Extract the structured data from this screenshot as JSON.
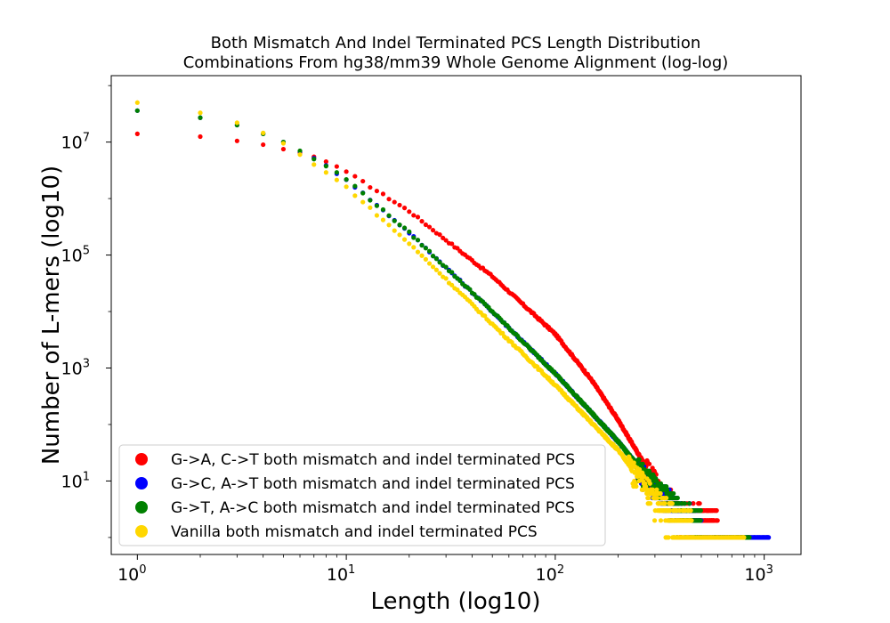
{
  "chart_data": {
    "type": "scatter",
    "title": "Both Mismatch And Indel Terminated PCS Length Distribution",
    "subtitle": "Combinations From hg38/mm39 Whole Genome Alignment (log-log)",
    "xlabel": "Length (log10)",
    "ylabel": "Number of L-mers (log10)",
    "xscale": "log",
    "yscale": "log",
    "xlim": [
      0.75,
      1500
    ],
    "ylim": [
      0.5,
      150000000
    ],
    "x_ticks": [
      {
        "base": "10",
        "exp": "0",
        "value": 1
      },
      {
        "base": "10",
        "exp": "1",
        "value": 10
      },
      {
        "base": "10",
        "exp": "2",
        "value": 100
      },
      {
        "base": "10",
        "exp": "3",
        "value": 1000
      }
    ],
    "y_ticks": [
      {
        "base": "10",
        "exp": "1",
        "value": 10
      },
      {
        "base": "10",
        "exp": "3",
        "value": 1000
      },
      {
        "base": "10",
        "exp": "5",
        "value": 100000
      },
      {
        "base": "10",
        "exp": "7",
        "value": 10000000
      }
    ],
    "legend_position": "lower-left",
    "series": [
      {
        "name": "G->A, C->T both mismatch and indel terminated PCS",
        "color": "#ff0000",
        "anchors": [
          [
            1,
            14000000
          ],
          [
            2,
            12500000
          ],
          [
            3,
            10500000
          ],
          [
            4,
            9000000
          ],
          [
            5,
            7500000
          ],
          [
            8,
            4500000
          ],
          [
            10,
            3000000
          ],
          [
            20,
            600000
          ],
          [
            50,
            42000
          ],
          [
            100,
            4000
          ],
          [
            150,
            600
          ],
          [
            200,
            120
          ],
          [
            250,
            30
          ],
          [
            320,
            7
          ],
          [
            400,
            3
          ],
          [
            600,
            2
          ]
        ],
        "points": [
          [
            1,
            14000000
          ],
          [
            2,
            12500000
          ],
          [
            3,
            10500000
          ],
          [
            4,
            9000000
          ],
          [
            5,
            7500000
          ],
          [
            6,
            6500000
          ],
          [
            7,
            5500000
          ],
          [
            8,
            4500000
          ],
          [
            9,
            3700000
          ],
          [
            10,
            3000000
          ]
        ],
        "max_length": 600,
        "singleton_max": 780
      },
      {
        "name": "G->C, A->T both mismatch and indel terminated PCS",
        "color": "#0000ff",
        "anchors": [
          [
            1,
            36000000
          ],
          [
            2,
            27000000
          ],
          [
            3,
            20000000
          ],
          [
            4,
            14000000
          ],
          [
            5,
            10000000
          ],
          [
            6,
            7000000
          ],
          [
            8,
            3800000
          ],
          [
            10,
            2200000
          ],
          [
            20,
            250000
          ],
          [
            50,
            10000
          ],
          [
            100,
            800
          ],
          [
            200,
            50
          ],
          [
            300,
            8
          ],
          [
            400,
            3
          ],
          [
            500,
            2
          ]
        ],
        "points": [
          [
            1,
            36000000
          ],
          [
            2,
            27000000
          ],
          [
            3,
            20000000
          ],
          [
            4,
            14000000
          ],
          [
            5,
            10000000
          ]
        ],
        "max_length": 500,
        "singleton_max": 1050
      },
      {
        "name": "G->T, A->C both mismatch and indel terminated PCS",
        "color": "#008000",
        "anchors": [
          [
            1,
            36000000
          ],
          [
            2,
            27000000
          ],
          [
            3,
            20000000
          ],
          [
            4,
            14000000
          ],
          [
            5,
            10000000
          ],
          [
            6,
            7000000
          ],
          [
            8,
            3800000
          ],
          [
            10,
            2200000
          ],
          [
            20,
            250000
          ],
          [
            50,
            10000
          ],
          [
            100,
            800
          ],
          [
            200,
            50
          ],
          [
            300,
            8
          ],
          [
            400,
            3
          ],
          [
            500,
            2
          ]
        ],
        "points": [
          [
            1,
            36000000
          ],
          [
            2,
            27000000
          ],
          [
            3,
            20000000
          ],
          [
            4,
            14000000
          ],
          [
            5,
            10000000
          ],
          [
            6,
            7000000
          ],
          [
            7,
            5000000
          ]
        ],
        "max_length": 500,
        "singleton_max": 850
      },
      {
        "name": "Vanilla both mismatch and indel terminated PCS",
        "color": "#ffd700",
        "anchors": [
          [
            1,
            50000000
          ],
          [
            2,
            33000000
          ],
          [
            3,
            22000000
          ],
          [
            4,
            14500000
          ],
          [
            5,
            9500000
          ],
          [
            6,
            6000000
          ],
          [
            8,
            2900000
          ],
          [
            10,
            1600000
          ],
          [
            20,
            160000
          ],
          [
            50,
            6000
          ],
          [
            100,
            500
          ],
          [
            200,
            35
          ],
          [
            300,
            5
          ],
          [
            400,
            2
          ],
          [
            450,
            2
          ]
        ],
        "points": [
          [
            1,
            50000000
          ],
          [
            2,
            33000000
          ],
          [
            3,
            22000000
          ],
          [
            4,
            14500000
          ],
          [
            5,
            9500000
          ],
          [
            6,
            6000000
          ],
          [
            7,
            4000000
          ],
          [
            8,
            2900000
          ]
        ],
        "max_length": 450,
        "singleton_max": 800
      }
    ]
  }
}
